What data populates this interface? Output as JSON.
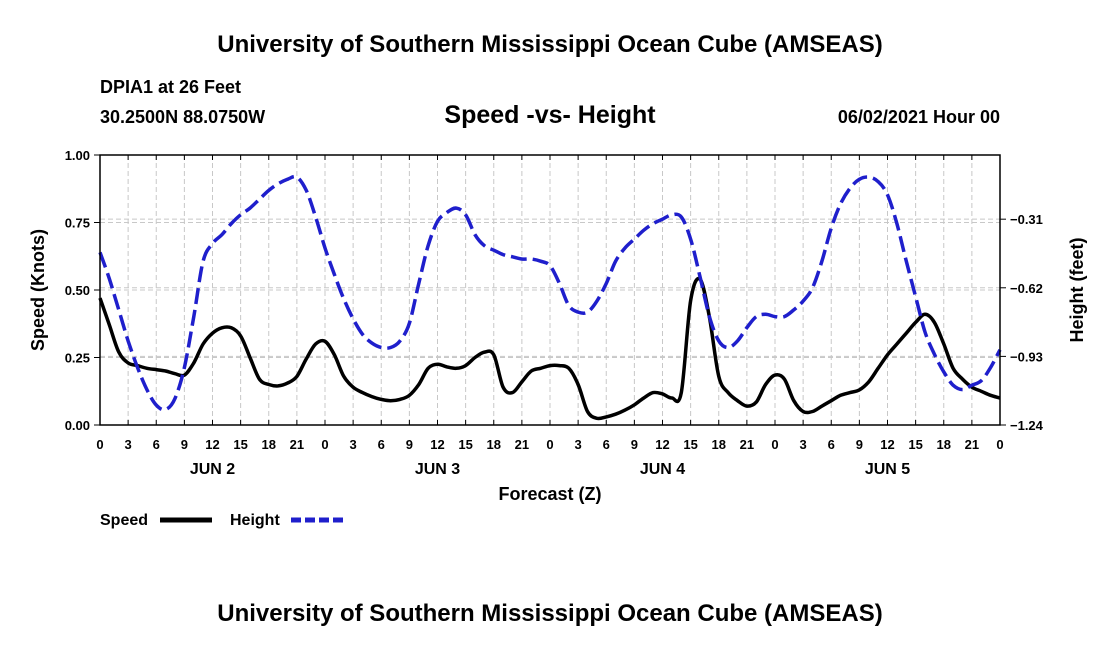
{
  "header": {
    "title": "University of Southern Mississippi Ocean Cube (AMSEAS)",
    "station": "DPIA1 at 26 Feet",
    "coords": "30.2500N  88.0750W",
    "subtitle": "Speed -vs- Height",
    "run_time": "06/02/2021 Hour 00"
  },
  "footer": {
    "title": "University of Southern Mississippi Ocean Cube (AMSEAS)"
  },
  "legend": {
    "speed_label": "Speed",
    "height_label": "Height"
  },
  "chart_data": {
    "type": "line",
    "title": "Speed -vs- Height",
    "xlabel": "Forecast (Z)",
    "ylabel": "Speed (Knots)",
    "y2label": "Height (feet)",
    "xlim": [
      0,
      96
    ],
    "ylim": [
      0,
      1
    ],
    "y2lim": [
      -1.24,
      -0.02
    ],
    "x_tick_hours": [
      0,
      3,
      6,
      9,
      12,
      15,
      18,
      21,
      24,
      27,
      30,
      33,
      36,
      39,
      42,
      45,
      48,
      51,
      54,
      57,
      60,
      63,
      66,
      69,
      72,
      75,
      78,
      81,
      84,
      87,
      90,
      93,
      96
    ],
    "x_tick_labels": [
      "0",
      "3",
      "6",
      "9",
      "12",
      "15",
      "18",
      "21",
      "0",
      "3",
      "6",
      "9",
      "12",
      "15",
      "18",
      "21",
      "0",
      "3",
      "6",
      "9",
      "12",
      "15",
      "18",
      "21",
      "0",
      "3",
      "6",
      "9",
      "12",
      "15",
      "18",
      "21",
      "0"
    ],
    "day_labels": [
      {
        "label": "JUN 2",
        "hour": 12
      },
      {
        "label": "JUN 3",
        "hour": 36
      },
      {
        "label": "JUN 4",
        "hour": 60
      },
      {
        "label": "JUN 5",
        "hour": 84
      }
    ],
    "y_ticks": [
      0,
      0.25,
      0.5,
      0.75,
      1.0
    ],
    "y_tick_labels": [
      "0.00",
      "0.25",
      "0.50",
      "0.75",
      "1.00"
    ],
    "y2_ticks": [
      -1.24,
      -0.93,
      -0.62,
      -0.31
    ],
    "y2_tick_labels": [
      "−1.24",
      "−0.93",
      "−0.62",
      "−0.31"
    ],
    "legend_position": "bottom-left",
    "grid": true,
    "series": [
      {
        "name": "Speed",
        "axis": "left",
        "color": "#000000",
        "dash": "solid",
        "points": [
          [
            0,
            0.47
          ],
          [
            1,
            0.37
          ],
          [
            2,
            0.27
          ],
          [
            3,
            0.23
          ],
          [
            4,
            0.22
          ],
          [
            5,
            0.21
          ],
          [
            6,
            0.205
          ],
          [
            7,
            0.2
          ],
          [
            8,
            0.19
          ],
          [
            9,
            0.185
          ],
          [
            10,
            0.23
          ],
          [
            11,
            0.3
          ],
          [
            12,
            0.34
          ],
          [
            13,
            0.36
          ],
          [
            14,
            0.36
          ],
          [
            15,
            0.33
          ],
          [
            16,
            0.25
          ],
          [
            17,
            0.17
          ],
          [
            18,
            0.15
          ],
          [
            19,
            0.145
          ],
          [
            20,
            0.155
          ],
          [
            21,
            0.18
          ],
          [
            22,
            0.245
          ],
          [
            23,
            0.3
          ],
          [
            24,
            0.31
          ],
          [
            25,
            0.26
          ],
          [
            26,
            0.18
          ],
          [
            27,
            0.14
          ],
          [
            28,
            0.12
          ],
          [
            29,
            0.105
          ],
          [
            30,
            0.095
          ],
          [
            31,
            0.09
          ],
          [
            32,
            0.095
          ],
          [
            33,
            0.11
          ],
          [
            34,
            0.15
          ],
          [
            35,
            0.21
          ],
          [
            36,
            0.225
          ],
          [
            37,
            0.215
          ],
          [
            38,
            0.21
          ],
          [
            39,
            0.22
          ],
          [
            40,
            0.25
          ],
          [
            41,
            0.27
          ],
          [
            42,
            0.26
          ],
          [
            43,
            0.14
          ],
          [
            44,
            0.12
          ],
          [
            45,
            0.16
          ],
          [
            46,
            0.2
          ],
          [
            47,
            0.21
          ],
          [
            48,
            0.22
          ],
          [
            49,
            0.22
          ],
          [
            50,
            0.21
          ],
          [
            51,
            0.15
          ],
          [
            52,
            0.05
          ],
          [
            53,
            0.025
          ],
          [
            54,
            0.03
          ],
          [
            55,
            0.04
          ],
          [
            56,
            0.055
          ],
          [
            57,
            0.075
          ],
          [
            58,
            0.1
          ],
          [
            59,
            0.12
          ],
          [
            60,
            0.115
          ],
          [
            61,
            0.1
          ],
          [
            62,
            0.12
          ],
          [
            63,
            0.46
          ],
          [
            64,
            0.54
          ],
          [
            65,
            0.4
          ],
          [
            66,
            0.18
          ],
          [
            67,
            0.12
          ],
          [
            68,
            0.09
          ],
          [
            69,
            0.07
          ],
          [
            70,
            0.085
          ],
          [
            71,
            0.15
          ],
          [
            72,
            0.185
          ],
          [
            73,
            0.17
          ],
          [
            74,
            0.09
          ],
          [
            75,
            0.05
          ],
          [
            76,
            0.05
          ],
          [
            77,
            0.07
          ],
          [
            78,
            0.09
          ],
          [
            79,
            0.11
          ],
          [
            80,
            0.12
          ],
          [
            81,
            0.13
          ],
          [
            82,
            0.16
          ],
          [
            83,
            0.21
          ],
          [
            84,
            0.26
          ],
          [
            85,
            0.3
          ],
          [
            86,
            0.34
          ],
          [
            87,
            0.38
          ],
          [
            88,
            0.41
          ],
          [
            89,
            0.38
          ],
          [
            90,
            0.3
          ],
          [
            91,
            0.21
          ],
          [
            92,
            0.17
          ],
          [
            93,
            0.14
          ],
          [
            94,
            0.125
          ],
          [
            95,
            0.11
          ],
          [
            96,
            0.1
          ]
        ]
      },
      {
        "name": "Height",
        "axis": "right",
        "color": "#1f1fcc",
        "dash": "dashed",
        "points": [
          [
            0,
            -0.46
          ],
          [
            1,
            -0.58
          ],
          [
            2,
            -0.72
          ],
          [
            3,
            -0.86
          ],
          [
            4,
            -0.98
          ],
          [
            5,
            -1.08
          ],
          [
            6,
            -1.15
          ],
          [
            7,
            -1.17
          ],
          [
            8,
            -1.12
          ],
          [
            9,
            -0.98
          ],
          [
            10,
            -0.75
          ],
          [
            11,
            -0.5
          ],
          [
            12,
            -0.42
          ],
          [
            13,
            -0.38
          ],
          [
            14,
            -0.33
          ],
          [
            15,
            -0.29
          ],
          [
            16,
            -0.26
          ],
          [
            17,
            -0.22
          ],
          [
            18,
            -0.18
          ],
          [
            19,
            -0.15
          ],
          [
            20,
            -0.13
          ],
          [
            21,
            -0.12
          ],
          [
            22,
            -0.18
          ],
          [
            23,
            -0.3
          ],
          [
            24,
            -0.44
          ],
          [
            25,
            -0.56
          ],
          [
            26,
            -0.67
          ],
          [
            27,
            -0.76
          ],
          [
            28,
            -0.83
          ],
          [
            29,
            -0.87
          ],
          [
            30,
            -0.89
          ],
          [
            31,
            -0.89
          ],
          [
            32,
            -0.86
          ],
          [
            33,
            -0.78
          ],
          [
            34,
            -0.6
          ],
          [
            35,
            -0.43
          ],
          [
            36,
            -0.32
          ],
          [
            37,
            -0.28
          ],
          [
            38,
            -0.26
          ],
          [
            39,
            -0.29
          ],
          [
            40,
            -0.38
          ],
          [
            41,
            -0.43
          ],
          [
            42,
            -0.45
          ],
          [
            43,
            -0.47
          ],
          [
            44,
            -0.48
          ],
          [
            45,
            -0.49
          ],
          [
            46,
            -0.49
          ],
          [
            47,
            -0.5
          ],
          [
            48,
            -0.52
          ],
          [
            49,
            -0.6
          ],
          [
            50,
            -0.7
          ],
          [
            51,
            -0.73
          ],
          [
            52,
            -0.73
          ],
          [
            53,
            -0.68
          ],
          [
            54,
            -0.6
          ],
          [
            55,
            -0.5
          ],
          [
            56,
            -0.44
          ],
          [
            57,
            -0.4
          ],
          [
            58,
            -0.36
          ],
          [
            59,
            -0.33
          ],
          [
            60,
            -0.31
          ],
          [
            61,
            -0.29
          ],
          [
            62,
            -0.3
          ],
          [
            63,
            -0.4
          ],
          [
            64,
            -0.57
          ],
          [
            65,
            -0.75
          ],
          [
            66,
            -0.86
          ],
          [
            67,
            -0.89
          ],
          [
            68,
            -0.86
          ],
          [
            69,
            -0.8
          ],
          [
            70,
            -0.75
          ],
          [
            71,
            -0.74
          ],
          [
            72,
            -0.75
          ],
          [
            73,
            -0.75
          ],
          [
            74,
            -0.72
          ],
          [
            75,
            -0.68
          ],
          [
            76,
            -0.62
          ],
          [
            77,
            -0.5
          ],
          [
            78,
            -0.35
          ],
          [
            79,
            -0.24
          ],
          [
            80,
            -0.17
          ],
          [
            81,
            -0.13
          ],
          [
            82,
            -0.12
          ],
          [
            83,
            -0.14
          ],
          [
            84,
            -0.2
          ],
          [
            85,
            -0.33
          ],
          [
            86,
            -0.5
          ],
          [
            87,
            -0.66
          ],
          [
            88,
            -0.82
          ],
          [
            89,
            -0.92
          ],
          [
            90,
            -1.0
          ],
          [
            91,
            -1.06
          ],
          [
            92,
            -1.08
          ],
          [
            93,
            -1.06
          ],
          [
            94,
            -1.04
          ],
          [
            95,
            -0.98
          ],
          [
            96,
            -0.9
          ]
        ]
      }
    ]
  }
}
